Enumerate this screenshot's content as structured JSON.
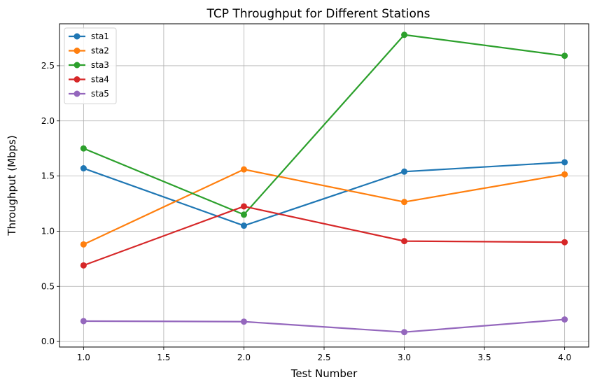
{
  "chart_data": {
    "type": "line",
    "title": "TCP Throughput for Different Stations",
    "xlabel": "Test Number",
    "ylabel": "Throughput (Mbps)",
    "x": [
      1.0,
      2.0,
      3.0,
      4.0
    ],
    "xlim": [
      0.85,
      4.15
    ],
    "ylim": [
      -0.05,
      2.88
    ],
    "xticks": [
      1.0,
      1.5,
      2.0,
      2.5,
      3.0,
      3.5,
      4.0
    ],
    "xtick_labels": [
      "1.0",
      "1.5",
      "2.0",
      "2.5",
      "3.0",
      "3.5",
      "4.0"
    ],
    "yticks": [
      0.0,
      0.5,
      1.0,
      1.5,
      2.0,
      2.5
    ],
    "ytick_labels": [
      "0.0",
      "0.5",
      "1.0",
      "1.5",
      "2.0",
      "2.5"
    ],
    "grid": true,
    "legend_position": "upper-left",
    "series": [
      {
        "name": "sta1",
        "color": "#1f77b4",
        "values": [
          1.57,
          1.05,
          1.54,
          1.625
        ]
      },
      {
        "name": "sta2",
        "color": "#ff7f0e",
        "values": [
          0.88,
          1.56,
          1.265,
          1.515
        ]
      },
      {
        "name": "sta3",
        "color": "#2ca02c",
        "values": [
          1.75,
          1.15,
          2.78,
          2.59
        ]
      },
      {
        "name": "sta4",
        "color": "#d62728",
        "values": [
          0.69,
          1.225,
          0.91,
          0.9
        ]
      },
      {
        "name": "sta5",
        "color": "#9467bd",
        "values": [
          0.185,
          0.18,
          0.085,
          0.2
        ]
      }
    ]
  }
}
